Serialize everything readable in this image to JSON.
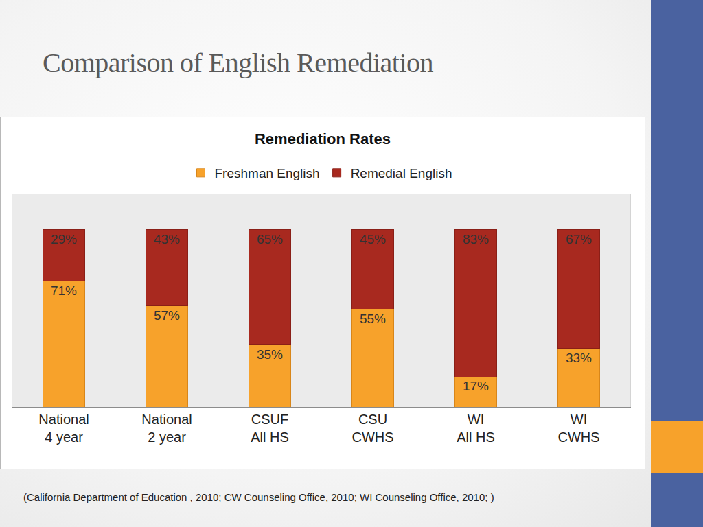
{
  "slide": {
    "title": "Comparison of English Remediation",
    "source": "(California Department of Education , 2010; CW Counseling Office, 2010;  WI Counseling Office, 2010; )"
  },
  "chart_data": {
    "type": "bar",
    "title": "Remediation Rates",
    "categories": [
      "National\n4 year",
      "National\n2 year",
      "CSUF\nAll HS",
      "CSU\nCWHS",
      "WI\nAll HS",
      "WI\nCWHS"
    ],
    "series": [
      {
        "name": "Freshman English",
        "color": "#f7a22b",
        "values": [
          71,
          57,
          35,
          55,
          17,
          33
        ],
        "value_labels": [
          "71%",
          "57%",
          "35%",
          "55%",
          "17%",
          "33%"
        ]
      },
      {
        "name": "Remedial English",
        "color": "#a8291f",
        "values": [
          29,
          43,
          65,
          45,
          83,
          67
        ],
        "value_labels": [
          "29%",
          "43%",
          "65%",
          "45%",
          "83%",
          "67%"
        ]
      }
    ],
    "stacked": true,
    "data_labels": true,
    "legend": "top",
    "grid": false,
    "tick_labels": "x",
    "ylim": [
      0,
      120
    ]
  }
}
